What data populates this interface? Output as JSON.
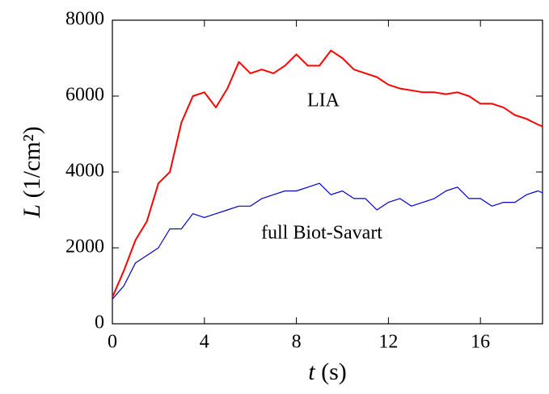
{
  "chart_data": {
    "type": "line",
    "xlabel_symbol": "t",
    "xlabel_unit": "(s)",
    "ylabel_symbol": "L",
    "ylabel_unit": "(1/cm²)",
    "annotations": [
      "LIA",
      "full Biot-Savart"
    ],
    "x": [
      0,
      0.5,
      1,
      1.5,
      2,
      2.5,
      3,
      3.5,
      4,
      4.5,
      5,
      5.5,
      6,
      6.5,
      7,
      7.5,
      8,
      8.5,
      9,
      9.5,
      10,
      10.5,
      11,
      11.5,
      12,
      12.5,
      13,
      13.5,
      14,
      14.5,
      15,
      15.5,
      16,
      16.5,
      17,
      17.5,
      18,
      18.5,
      18.7
    ],
    "series": [
      {
        "name": "LIA",
        "color": "#ff0000",
        "width": 2,
        "values": [
          700,
          1400,
          2200,
          2700,
          3700,
          4000,
          5300,
          6000,
          6100,
          5700,
          6200,
          6900,
          6600,
          6700,
          6600,
          6800,
          7100,
          6800,
          6800,
          7200,
          7000,
          6700,
          6600,
          6500,
          6300,
          6200,
          6150,
          6100,
          6100,
          6050,
          6100,
          6000,
          5800,
          5800,
          5700,
          5500,
          5400,
          5250,
          5200
        ]
      },
      {
        "name": "full Biot-Savart",
        "color": "#0000cc",
        "width": 1.2,
        "values": [
          650,
          1000,
          1600,
          1800,
          2000,
          2500,
          2500,
          2900,
          2800,
          2900,
          3000,
          3100,
          3100,
          3300,
          3400,
          3500,
          3500,
          3600,
          3700,
          3400,
          3500,
          3300,
          3300,
          3000,
          3200,
          3300,
          3100,
          3200,
          3300,
          3500,
          3600,
          3300,
          3300,
          3100,
          3200,
          3200,
          3400,
          3500,
          3450
        ]
      }
    ],
    "xlim": [
      0,
      18.7
    ],
    "xticks": [
      0,
      4,
      8,
      12,
      16
    ],
    "ylim": [
      0,
      8000
    ],
    "yticks": [
      0,
      2000,
      4000,
      6000,
      8000
    ]
  }
}
